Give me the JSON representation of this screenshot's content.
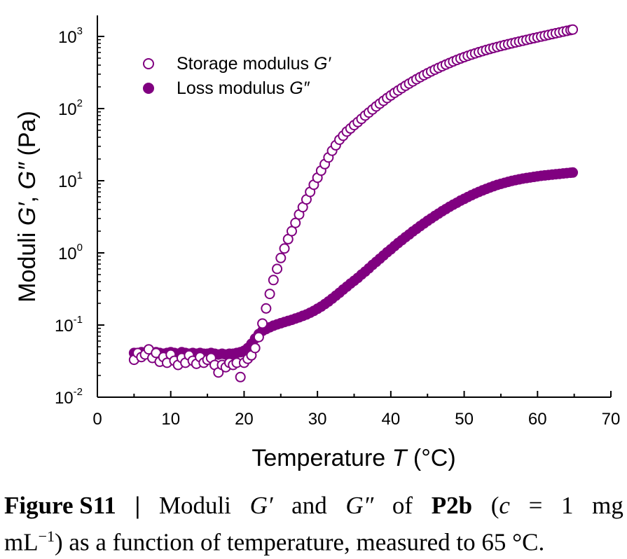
{
  "chart_data": {
    "type": "scatter",
    "title": "",
    "xlabel_prefix": "Temperature",
    "xlabel_var": "T",
    "xlabel_unit": "(°C)",
    "ylabel_prefix": "Moduli",
    "ylabel_var1": "G′",
    "ylabel_sep": ", ",
    "ylabel_var2": "G″",
    "ylabel_unit": "(Pa)",
    "xlim": [
      0,
      70
    ],
    "ylim": [
      0.01,
      1000
    ],
    "yscale": "log",
    "x_ticks": [
      "0",
      "10",
      "20",
      "30",
      "40",
      "50",
      "60",
      "70"
    ],
    "y_tick_exponents": [
      "-2",
      "-1",
      "0",
      "1",
      "2",
      "3"
    ],
    "y_tick_base": "10",
    "legend_position": "top-left",
    "grid": false,
    "series": [
      {
        "name_text": "Storage modulus",
        "name_var": "G′",
        "marker": "open-circle",
        "color": "#800080",
        "points": [
          [
            5,
            0.033
          ],
          [
            5.5,
            0.041
          ],
          [
            6,
            0.036
          ],
          [
            6.5,
            0.039
          ],
          [
            7,
            0.046
          ],
          [
            7.5,
            0.035
          ],
          [
            8,
            0.041
          ],
          [
            8.5,
            0.031
          ],
          [
            9,
            0.036
          ],
          [
            9.5,
            0.03
          ],
          [
            10,
            0.039
          ],
          [
            10.5,
            0.032
          ],
          [
            11,
            0.028
          ],
          [
            11.5,
            0.035
          ],
          [
            12,
            0.03
          ],
          [
            12.5,
            0.038
          ],
          [
            13,
            0.032
          ],
          [
            13.5,
            0.029
          ],
          [
            14,
            0.036
          ],
          [
            14.5,
            0.03
          ],
          [
            15,
            0.033
          ],
          [
            15.5,
            0.035
          ],
          [
            16,
            0.028
          ],
          [
            16.5,
            0.022
          ],
          [
            17,
            0.028
          ],
          [
            17.5,
            0.026
          ],
          [
            18,
            0.03
          ],
          [
            18.5,
            0.028
          ],
          [
            19,
            0.03
          ],
          [
            19.5,
            0.019
          ],
          [
            20,
            0.03
          ],
          [
            20.5,
            0.034
          ],
          [
            21,
            0.038
          ],
          [
            21.5,
            0.048
          ],
          [
            22,
            0.068
          ],
          [
            22.5,
            0.105
          ],
          [
            23,
            0.17
          ],
          [
            23.5,
            0.27
          ],
          [
            24,
            0.42
          ],
          [
            24.5,
            0.6
          ],
          [
            25,
            0.85
          ],
          [
            25.5,
            1.15
          ],
          [
            26,
            1.55
          ],
          [
            26.5,
            2.0
          ],
          [
            27,
            2.6
          ],
          [
            27.5,
            3.4
          ],
          [
            28,
            4.3
          ],
          [
            28.5,
            5.5
          ],
          [
            29,
            7.0
          ],
          [
            29.5,
            8.8
          ],
          [
            30,
            11.0
          ],
          [
            30.5,
            13.8
          ],
          [
            31,
            17
          ],
          [
            31.5,
            21
          ],
          [
            32,
            26
          ],
          [
            32.5,
            31
          ],
          [
            33,
            37
          ],
          [
            33.5,
            42
          ],
          [
            34,
            48
          ],
          [
            34.5,
            53
          ],
          [
            35,
            59
          ],
          [
            35.5,
            65
          ],
          [
            36,
            72
          ],
          [
            36.5,
            80
          ],
          [
            37,
            88
          ],
          [
            37.5,
            97
          ],
          [
            38,
            107
          ],
          [
            38.5,
            117
          ],
          [
            39,
            128
          ],
          [
            39.5,
            140
          ],
          [
            40,
            152
          ],
          [
            40.5,
            165
          ],
          [
            41,
            178
          ],
          [
            41.5,
            192
          ],
          [
            42,
            207
          ],
          [
            42.5,
            222
          ],
          [
            43,
            238
          ],
          [
            43.5,
            255
          ],
          [
            44,
            272
          ],
          [
            44.5,
            290
          ],
          [
            45,
            308
          ],
          [
            45.5,
            327
          ],
          [
            46,
            346
          ],
          [
            46.5,
            366
          ],
          [
            47,
            386
          ],
          [
            47.5,
            407
          ],
          [
            48,
            428
          ],
          [
            48.5,
            450
          ],
          [
            49,
            472
          ],
          [
            49.5,
            494
          ],
          [
            50,
            516
          ],
          [
            50.5,
            538
          ],
          [
            51,
            560
          ],
          [
            51.5,
            582
          ],
          [
            52,
            604
          ],
          [
            52.5,
            626
          ],
          [
            53,
            648
          ],
          [
            53.5,
            670
          ],
          [
            54,
            692
          ],
          [
            54.5,
            714
          ],
          [
            55,
            736
          ],
          [
            55.5,
            758
          ],
          [
            56,
            780
          ],
          [
            56.5,
            802
          ],
          [
            57,
            825
          ],
          [
            57.5,
            848
          ],
          [
            58,
            871
          ],
          [
            58.5,
            895
          ],
          [
            59,
            920
          ],
          [
            59.5,
            945
          ],
          [
            60,
            970
          ],
          [
            60.5,
            996
          ],
          [
            61,
            1022
          ],
          [
            61.5,
            1050
          ],
          [
            62,
            1078
          ],
          [
            62.5,
            1106
          ],
          [
            63,
            1135
          ],
          [
            63.5,
            1165
          ],
          [
            64,
            1195
          ],
          [
            64.5,
            1225
          ],
          [
            64.8,
            1245
          ]
        ]
      },
      {
        "name_text": "Loss modulus",
        "name_var": "G″",
        "marker": "filled-circle",
        "color": "#800080",
        "points": [
          [
            5,
            0.041
          ],
          [
            5.5,
            0.04
          ],
          [
            6,
            0.042
          ],
          [
            6.5,
            0.041
          ],
          [
            7,
            0.043
          ],
          [
            7.5,
            0.041
          ],
          [
            8,
            0.042
          ],
          [
            8.5,
            0.041
          ],
          [
            9,
            0.04
          ],
          [
            9.5,
            0.041
          ],
          [
            10,
            0.042
          ],
          [
            10.5,
            0.041
          ],
          [
            11,
            0.04
          ],
          [
            11.5,
            0.042
          ],
          [
            12,
            0.041
          ],
          [
            12.5,
            0.04
          ],
          [
            13,
            0.041
          ],
          [
            13.5,
            0.04
          ],
          [
            14,
            0.041
          ],
          [
            14.5,
            0.04
          ],
          [
            15,
            0.04
          ],
          [
            15.5,
            0.041
          ],
          [
            16,
            0.04
          ],
          [
            16.5,
            0.039
          ],
          [
            17,
            0.04
          ],
          [
            17.5,
            0.039
          ],
          [
            18,
            0.04
          ],
          [
            18.5,
            0.04
          ],
          [
            19,
            0.041
          ],
          [
            19.5,
            0.042
          ],
          [
            20,
            0.044
          ],
          [
            20.5,
            0.048
          ],
          [
            21,
            0.055
          ],
          [
            21.5,
            0.065
          ],
          [
            22,
            0.075
          ],
          [
            22.5,
            0.083
          ],
          [
            23,
            0.088
          ],
          [
            23.5,
            0.093
          ],
          [
            24,
            0.098
          ],
          [
            24.5,
            0.102
          ],
          [
            25,
            0.106
          ],
          [
            25.5,
            0.11
          ],
          [
            26,
            0.114
          ],
          [
            26.5,
            0.118
          ],
          [
            27,
            0.123
          ],
          [
            27.5,
            0.128
          ],
          [
            28,
            0.134
          ],
          [
            28.5,
            0.14
          ],
          [
            29,
            0.148
          ],
          [
            29.5,
            0.157
          ],
          [
            30,
            0.168
          ],
          [
            30.5,
            0.18
          ],
          [
            31,
            0.195
          ],
          [
            31.5,
            0.212
          ],
          [
            32,
            0.232
          ],
          [
            32.5,
            0.255
          ],
          [
            33,
            0.28
          ],
          [
            33.5,
            0.31
          ],
          [
            34,
            0.34
          ],
          [
            34.5,
            0.375
          ],
          [
            35,
            0.41
          ],
          [
            35.5,
            0.45
          ],
          [
            36,
            0.5
          ],
          [
            36.5,
            0.55
          ],
          [
            37,
            0.61
          ],
          [
            37.5,
            0.68
          ],
          [
            38,
            0.75
          ],
          [
            38.5,
            0.83
          ],
          [
            39,
            0.92
          ],
          [
            39.5,
            1.02
          ],
          [
            40,
            1.12
          ],
          [
            40.5,
            1.24
          ],
          [
            41,
            1.37
          ],
          [
            41.5,
            1.5
          ],
          [
            42,
            1.65
          ],
          [
            42.5,
            1.8
          ],
          [
            43,
            1.98
          ],
          [
            43.5,
            2.15
          ],
          [
            44,
            2.35
          ],
          [
            44.5,
            2.55
          ],
          [
            45,
            2.78
          ],
          [
            45.5,
            3.0
          ],
          [
            46,
            3.25
          ],
          [
            46.5,
            3.5
          ],
          [
            47,
            3.78
          ],
          [
            47.5,
            4.05
          ],
          [
            48,
            4.35
          ],
          [
            48.5,
            4.65
          ],
          [
            49,
            4.95
          ],
          [
            49.5,
            5.3
          ],
          [
            50,
            5.6
          ],
          [
            50.5,
            5.95
          ],
          [
            51,
            6.3
          ],
          [
            51.5,
            6.65
          ],
          [
            52,
            7.0
          ],
          [
            52.5,
            7.35
          ],
          [
            53,
            7.7
          ],
          [
            53.5,
            8.05
          ],
          [
            54,
            8.4
          ],
          [
            54.5,
            8.75
          ],
          [
            55,
            9.05
          ],
          [
            55.5,
            9.35
          ],
          [
            56,
            9.65
          ],
          [
            56.5,
            9.95
          ],
          [
            57,
            10.2
          ],
          [
            57.5,
            10.45
          ],
          [
            58,
            10.7
          ],
          [
            58.5,
            10.9
          ],
          [
            59,
            11.1
          ],
          [
            59.5,
            11.3
          ],
          [
            60,
            11.5
          ],
          [
            60.5,
            11.7
          ],
          [
            61,
            11.85
          ],
          [
            61.5,
            12.0
          ],
          [
            62,
            12.15
          ],
          [
            62.5,
            12.3
          ],
          [
            63,
            12.45
          ],
          [
            63.5,
            12.6
          ],
          [
            64,
            12.75
          ],
          [
            64.5,
            12.9
          ],
          [
            64.8,
            13.0
          ]
        ]
      }
    ]
  },
  "caption": {
    "label": "Figure S11",
    "sep": "|",
    "w1": "Moduli",
    "w2": "G′",
    "w3": "and",
    "w4": "G″",
    "w5": "of",
    "w6": "P2b",
    "w7_open": "(",
    "w7_var": "c",
    "w8": "=",
    "w9": "1",
    "w10": "mg",
    "line2_unit": "mL",
    "line2_sup": "−1",
    "line2_rest": ") as a function of temperature, measured to 65 °C."
  }
}
